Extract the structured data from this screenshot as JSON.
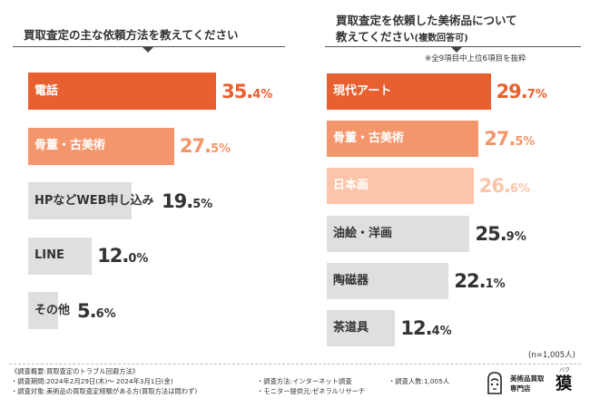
{
  "left_title": "買取査定の主な依頼方法を教えてください",
  "right_title_line1": "買取査定を依頼した美術品について",
  "right_title_line2": "教えてください",
  "right_title_sub": "(複数回答可)",
  "right_note": "※全9項目中上位6項目を抜粋",
  "n_note": "(n=1,005人)",
  "colors": {
    "dark": "#e8602f",
    "medium": "#f4966c",
    "light": "#fcc5a9",
    "gray": "#dfdfdf",
    "text_dark": "#333333"
  },
  "chart_data": [
    {
      "type": "bar",
      "orientation": "horizontal",
      "title": "買取査定の主な依頼方法を教えてください",
      "categories": [
        "電話",
        "骨董・古美術",
        "HPなどWEB申し込み",
        "LINE",
        "その他"
      ],
      "values": [
        35.4,
        27.5,
        19.5,
        12.0,
        5.6
      ],
      "value_labels": [
        {
          "int": "35.",
          "dec": "4%"
        },
        {
          "int": "27.",
          "dec": "5%"
        },
        {
          "int": "19.",
          "dec": "5%"
        },
        {
          "int": "12.",
          "dec": "0%"
        },
        {
          "int": "5.",
          "dec": "6%"
        }
      ],
      "styles": [
        "dark",
        "medium",
        "gray",
        "gray",
        "gray"
      ],
      "unit": "%"
    },
    {
      "type": "bar",
      "orientation": "horizontal",
      "title": "買取査定を依頼した美術品について教えてください(複数回答可)",
      "categories": [
        "現代アート",
        "骨董・古美術",
        "日本画",
        "油絵・洋画",
        "陶磁器",
        "茶道具"
      ],
      "values": [
        29.7,
        27.5,
        26.6,
        25.9,
        22.1,
        12.4
      ],
      "value_labels": [
        {
          "int": "29.",
          "dec": "7%"
        },
        {
          "int": "27.",
          "dec": "5%"
        },
        {
          "int": "26.",
          "dec": "6%"
        },
        {
          "int": "25.",
          "dec": "9%"
        },
        {
          "int": "22.",
          "dec": "1%"
        },
        {
          "int": "12.",
          "dec": "4%"
        }
      ],
      "styles": [
        "dark",
        "medium",
        "light",
        "gray",
        "gray",
        "gray"
      ],
      "unit": "%"
    }
  ],
  "footer": {
    "overview": "《調査概要:買取査定のトラブル回避方法》",
    "period": "・調査期間:2024年2月29日(木)〜 2024年3月1日(金)",
    "target": "・調査対象:美術品の買取査定経験がある方(買取方法は問わず)",
    "method": "・調査方法:インターネット調査",
    "monitor": "・モニター提供元:ゼネラルリサーチ",
    "count": "・調査人数:1,005人"
  },
  "brand": {
    "line1": "美術品買取",
    "line2": "専門店",
    "name": "獏",
    "ruby": "バク"
  }
}
